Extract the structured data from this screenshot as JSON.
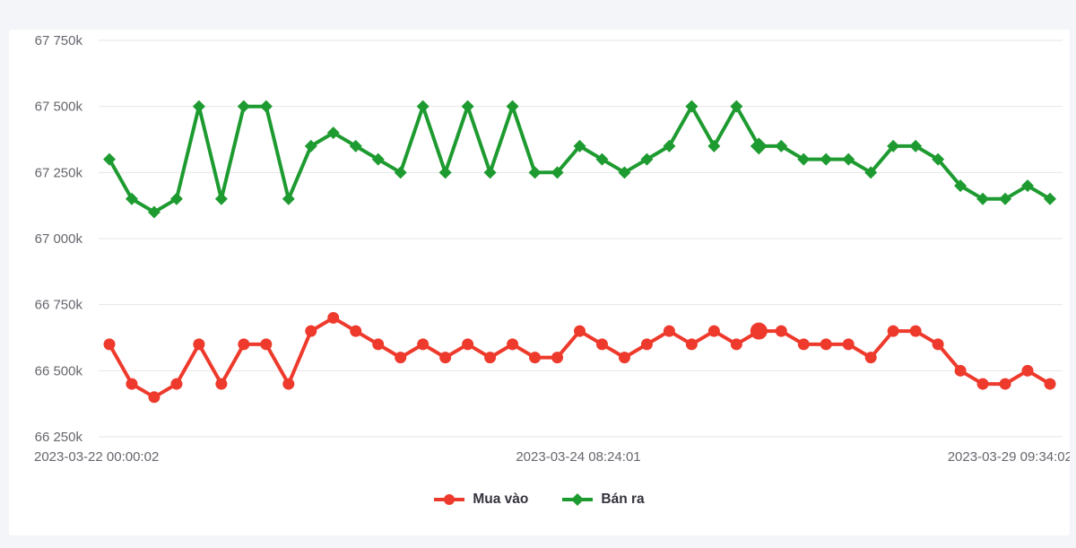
{
  "page": {
    "background_color": "#f3f5f9",
    "card_background_color": "#ffffff"
  },
  "chart_data": {
    "type": "line",
    "title": "",
    "xlabel": "",
    "ylabel": "",
    "grid": true,
    "legend_position": "bottom",
    "y_axis": {
      "unit_suffix": "k",
      "range_k": [
        66250,
        67750
      ],
      "tick_values_k": [
        67750,
        67500,
        67250,
        67000,
        66750,
        66500,
        66250
      ],
      "tick_labels": [
        "67 750k",
        "67 500k",
        "67 250k",
        "67 000k",
        "66 750k",
        "66 500k",
        "66 250k"
      ]
    },
    "x_axis": {
      "tick_labels": [
        "2023-03-22 00:00:02",
        "2023-03-24 08:24:01",
        "2023-03-29 09:34:02"
      ]
    },
    "grid_color": "#e6e6e6",
    "highlight_index": 29,
    "series": [
      {
        "name": "Mua vào",
        "color": "#ee3a2c",
        "marker": "circle",
        "values_k": [
          66600,
          66450,
          66400,
          66450,
          66600,
          66450,
          66600,
          66600,
          66450,
          66650,
          66700,
          66650,
          66600,
          66550,
          66600,
          66550,
          66600,
          66550,
          66600,
          66550,
          66550,
          66650,
          66600,
          66550,
          66600,
          66650,
          66600,
          66650,
          66600,
          66650,
          66650,
          66600,
          66600,
          66600,
          66550,
          66650,
          66650,
          66600,
          66500,
          66450,
          66450,
          66500,
          66450
        ]
      },
      {
        "name": "Bán ra",
        "color": "#1e9b30",
        "marker": "diamond",
        "values_k": [
          67300,
          67150,
          67100,
          67150,
          67500,
          67150,
          67500,
          67500,
          67150,
          67350,
          67400,
          67350,
          67300,
          67250,
          67500,
          67250,
          67500,
          67250,
          67500,
          67250,
          67250,
          67350,
          67300,
          67250,
          67300,
          67350,
          67500,
          67350,
          67500,
          67350,
          67350,
          67300,
          67300,
          67300,
          67250,
          67350,
          67350,
          67300,
          67200,
          67150,
          67150,
          67200,
          67150
        ]
      }
    ]
  }
}
